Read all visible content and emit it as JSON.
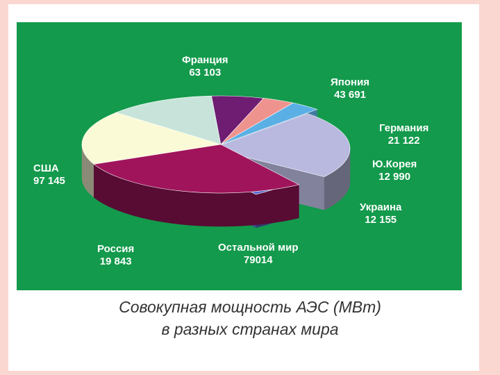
{
  "caption": {
    "line1": "Совокупная мощность АЭС (МВт)",
    "line2": "в разных странах мира"
  },
  "colors": {
    "page_bg": "#fbd7d1",
    "panel_bg": "#139a4c",
    "label_text": "#ffffff"
  },
  "chart_data": {
    "type": "pie",
    "style": "3d-exploded",
    "title": "Совокупная мощность АЭС (МВт)",
    "subtitle": "в разных странах мира",
    "slices": [
      {
        "label": "Франция",
        "value_text": "63 103",
        "value": 63103,
        "color": "#fafad6"
      },
      {
        "label": "Япония",
        "value_text": "43 691",
        "value": 43691,
        "color": "#c8e4da"
      },
      {
        "label": "Германия",
        "value_text": "21 122",
        "value": 21122,
        "color": "#6e1d73"
      },
      {
        "label": "Ю.Корея",
        "value_text": "12 990",
        "value": 12990,
        "color": "#ef938f"
      },
      {
        "label": "Украина",
        "value_text": "12 155",
        "value": 12155,
        "color": "#5ab0e5"
      },
      {
        "label": "Остальной мир",
        "value_text": "79014",
        "value": 79014,
        "color": "#b9b9e0"
      },
      {
        "label": "Россия",
        "value_text": "19 843",
        "value": 19843,
        "color": "#5a6fd0"
      },
      {
        "label": "США",
        "value_text": "97 145",
        "value": 97145,
        "color": "#a0145c"
      }
    ]
  }
}
